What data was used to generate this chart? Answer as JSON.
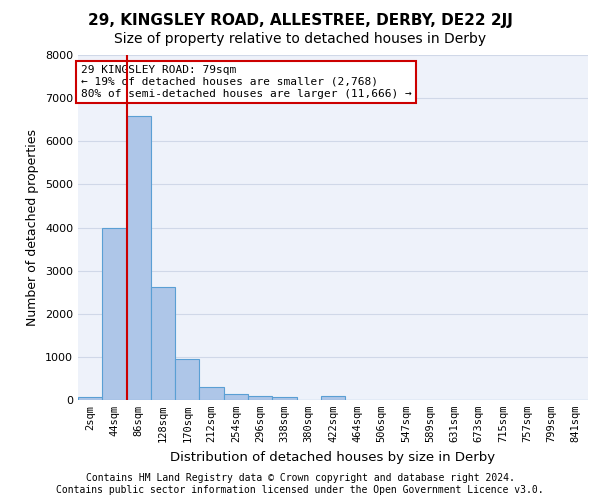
{
  "title_line1": "29, KINGSLEY ROAD, ALLESTREE, DERBY, DE22 2JJ",
  "title_line2": "Size of property relative to detached houses in Derby",
  "xlabel": "Distribution of detached houses by size in Derby",
  "ylabel": "Number of detached properties",
  "footer_line1": "Contains HM Land Registry data © Crown copyright and database right 2024.",
  "footer_line2": "Contains public sector information licensed under the Open Government Licence v3.0.",
  "annotation_line1": "29 KINGSLEY ROAD: 79sqm",
  "annotation_line2": "← 19% of detached houses are smaller (2,768)",
  "annotation_line3": "80% of semi-detached houses are larger (11,666) →",
  "bar_values": [
    80,
    3980,
    6580,
    2620,
    960,
    310,
    140,
    100,
    80,
    0,
    90,
    0,
    0,
    0,
    0,
    0,
    0,
    0,
    0,
    0,
    0
  ],
  "categories": [
    "2sqm",
    "44sqm",
    "86sqm",
    "128sqm",
    "170sqm",
    "212sqm",
    "254sqm",
    "296sqm",
    "338sqm",
    "380sqm",
    "422sqm",
    "464sqm",
    "506sqm",
    "547sqm",
    "589sqm",
    "631sqm",
    "673sqm",
    "715sqm",
    "757sqm",
    "799sqm",
    "841sqm"
  ],
  "bar_color": "#aec6e8",
  "bar_edge_color": "#5a9fd4",
  "red_line_x": 1.5,
  "ylim": [
    0,
    8000
  ],
  "yticks": [
    0,
    1000,
    2000,
    3000,
    4000,
    5000,
    6000,
    7000,
    8000
  ],
  "background_color": "#eef2fa",
  "grid_color": "#d0d8e8",
  "annotation_box_color": "#ffffff",
  "annotation_box_edge": "#cc0000",
  "red_line_color": "#cc0000",
  "title_fontsize": 11,
  "subtitle_fontsize": 10,
  "axis_label_fontsize": 9,
  "tick_fontsize": 7.5,
  "annotation_fontsize": 8,
  "footer_fontsize": 7
}
